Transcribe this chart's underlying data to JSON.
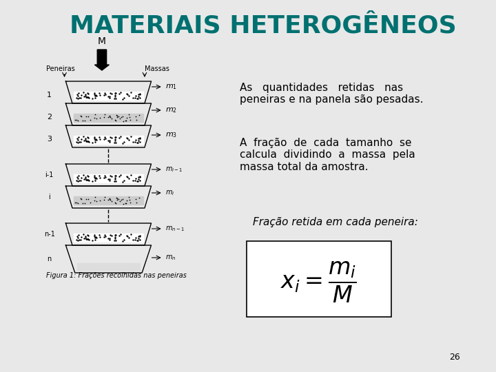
{
  "title": "MATERIAIS HETEROGÊNEOS",
  "title_color": "#007070",
  "title_fontsize": 26,
  "bg_color": "#e8e8e8",
  "text1": "As   quantidades   retidas   nas\npeneiras e na panela são pesadas.",
  "text2": "A  fração  de  cada  tamanho  se\ncalcula  dividindo  a  massa  pela\nmassa total da amostra.",
  "text3": "Fração retida em cada peneira:",
  "formula": "$x_i = \\dfrac{m_i}{M}$",
  "caption": "Figura 1: Frações recolhidas nas peneiras",
  "page_num": "26"
}
